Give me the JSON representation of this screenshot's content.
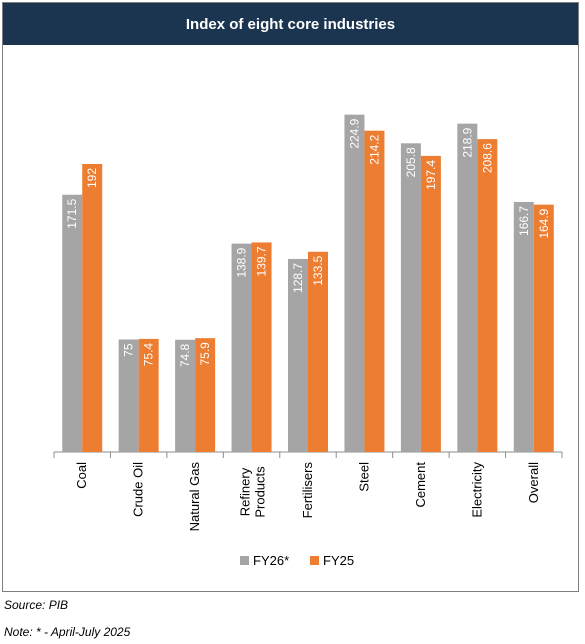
{
  "chart_data": {
    "type": "bar",
    "title": "Index of eight core industries",
    "categories": [
      "Coal",
      "Crude Oil",
      "Natural Gas",
      "Refinery\nProducts",
      "Fertilisers",
      "Steel",
      "Cement",
      "Electricity",
      "Overall"
    ],
    "series": [
      {
        "name": "FY26*",
        "color": "#a5a5a5",
        "values": [
          171.5,
          75,
          74.8,
          138.9,
          128.7,
          224.9,
          205.8,
          218.9,
          166.7
        ],
        "labels": [
          "171.5",
          "75",
          "74.8",
          "138.9",
          "128.7",
          "224.9",
          "205.8",
          "218.9",
          "166.7"
        ]
      },
      {
        "name": "FY25",
        "color": "#ed7d31",
        "values": [
          192,
          75.4,
          75.9,
          139.7,
          133.5,
          214.2,
          197.4,
          208.6,
          164.9
        ],
        "labels": [
          "192",
          "75.4",
          "75.9",
          "139.7",
          "133.5",
          "214.2",
          "197.4",
          "208.6",
          "164.9"
        ]
      }
    ],
    "ylim": [
      0,
      240
    ],
    "grid": false,
    "legend": "bottom"
  },
  "footer": {
    "source": "Source: PIB",
    "note": "Note: * - April-July 2025"
  }
}
